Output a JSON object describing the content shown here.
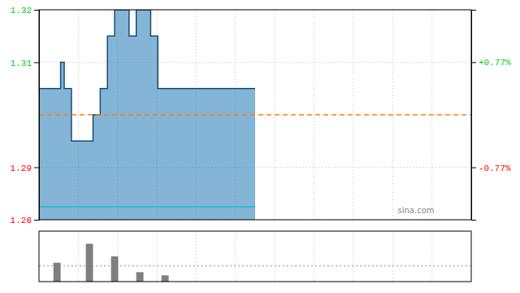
{
  "chart_data": [
    {
      "type": "area",
      "x": [
        0,
        10,
        12,
        14,
        18,
        22,
        26,
        30,
        34,
        38,
        42,
        46,
        50,
        54,
        58,
        62,
        66,
        70,
        74,
        78,
        82,
        86,
        90,
        94,
        98,
        102,
        106,
        110,
        114,
        118,
        120
      ],
      "series": [
        {
          "values": [
            1.305,
            1.305,
            1.31,
            1.305,
            1.295,
            1.295,
            1.295,
            1.3,
            1.305,
            1.315,
            1.32,
            1.32,
            1.315,
            1.32,
            1.32,
            1.315,
            1.305,
            1.305,
            1.305,
            1.305,
            1.305,
            1.305,
            1.305,
            1.305,
            1.305,
            1.305,
            1.305,
            1.305,
            1.305,
            1.305,
            1.305
          ]
        }
      ],
      "xlim": [
        0,
        240
      ],
      "xticks": [
        21.8181818181818,
        43.6363636363636,
        65.4545454545455,
        87.2727272727273,
        109.090909090909,
        130.909090909091,
        152.727272727273,
        174.545454545455,
        196.363636363636,
        218.181818181818
      ],
      "ylim": [
        1.28,
        1.32
      ],
      "yticks": [
        {
          "value": 1.28,
          "label": "1.28",
          "color": "#ff0000"
        },
        {
          "value": 1.29,
          "label": "1.29",
          "color": "#ff0000"
        },
        {
          "value": 1.31,
          "label": "1.31",
          "color": "#00cc00"
        },
        {
          "value": 1.32,
          "label": "1.32",
          "color": "#00cc00"
        }
      ],
      "y2lim": [
        -1.5384615384615385,
        1.5384615384615385
      ],
      "y2ticks": [
        {
          "value": -0.77,
          "label": "-0.77%",
          "color": "#ff0000"
        },
        {
          "value": 0.77,
          "label": "+0.77%",
          "color": "#00cc00"
        }
      ],
      "reference_lines": [
        {
          "value": 1.3,
          "line_style": "dashed"
        },
        {
          "value": 1.2825,
          "x_range": [
            0,
            120
          ],
          "line_style": "solid"
        }
      ],
      "annotations": [
        {
          "text": "sina.com",
          "color": "#888888"
        }
      ],
      "grid": true,
      "tick_labels": "y"
    },
    {
      "type": "bar",
      "x": [
        10,
        28,
        42,
        56,
        70
      ],
      "values": [
        6,
        12,
        8,
        3,
        2
      ],
      "xlim": [
        0,
        240
      ],
      "xticks": [
        21.8181818181818,
        43.6363636363636,
        65.4545454545455,
        87.2727272727273,
        109.090909090909,
        130.909090909091,
        152.727272727273,
        174.545454545455,
        196.363636363636,
        218.181818181818
      ],
      "ylim": [
        0,
        16
      ],
      "reference_lines": [
        {
          "value": 5,
          "line_style": "dotted"
        }
      ],
      "grid": true,
      "tick_labels": false
    }
  ]
}
